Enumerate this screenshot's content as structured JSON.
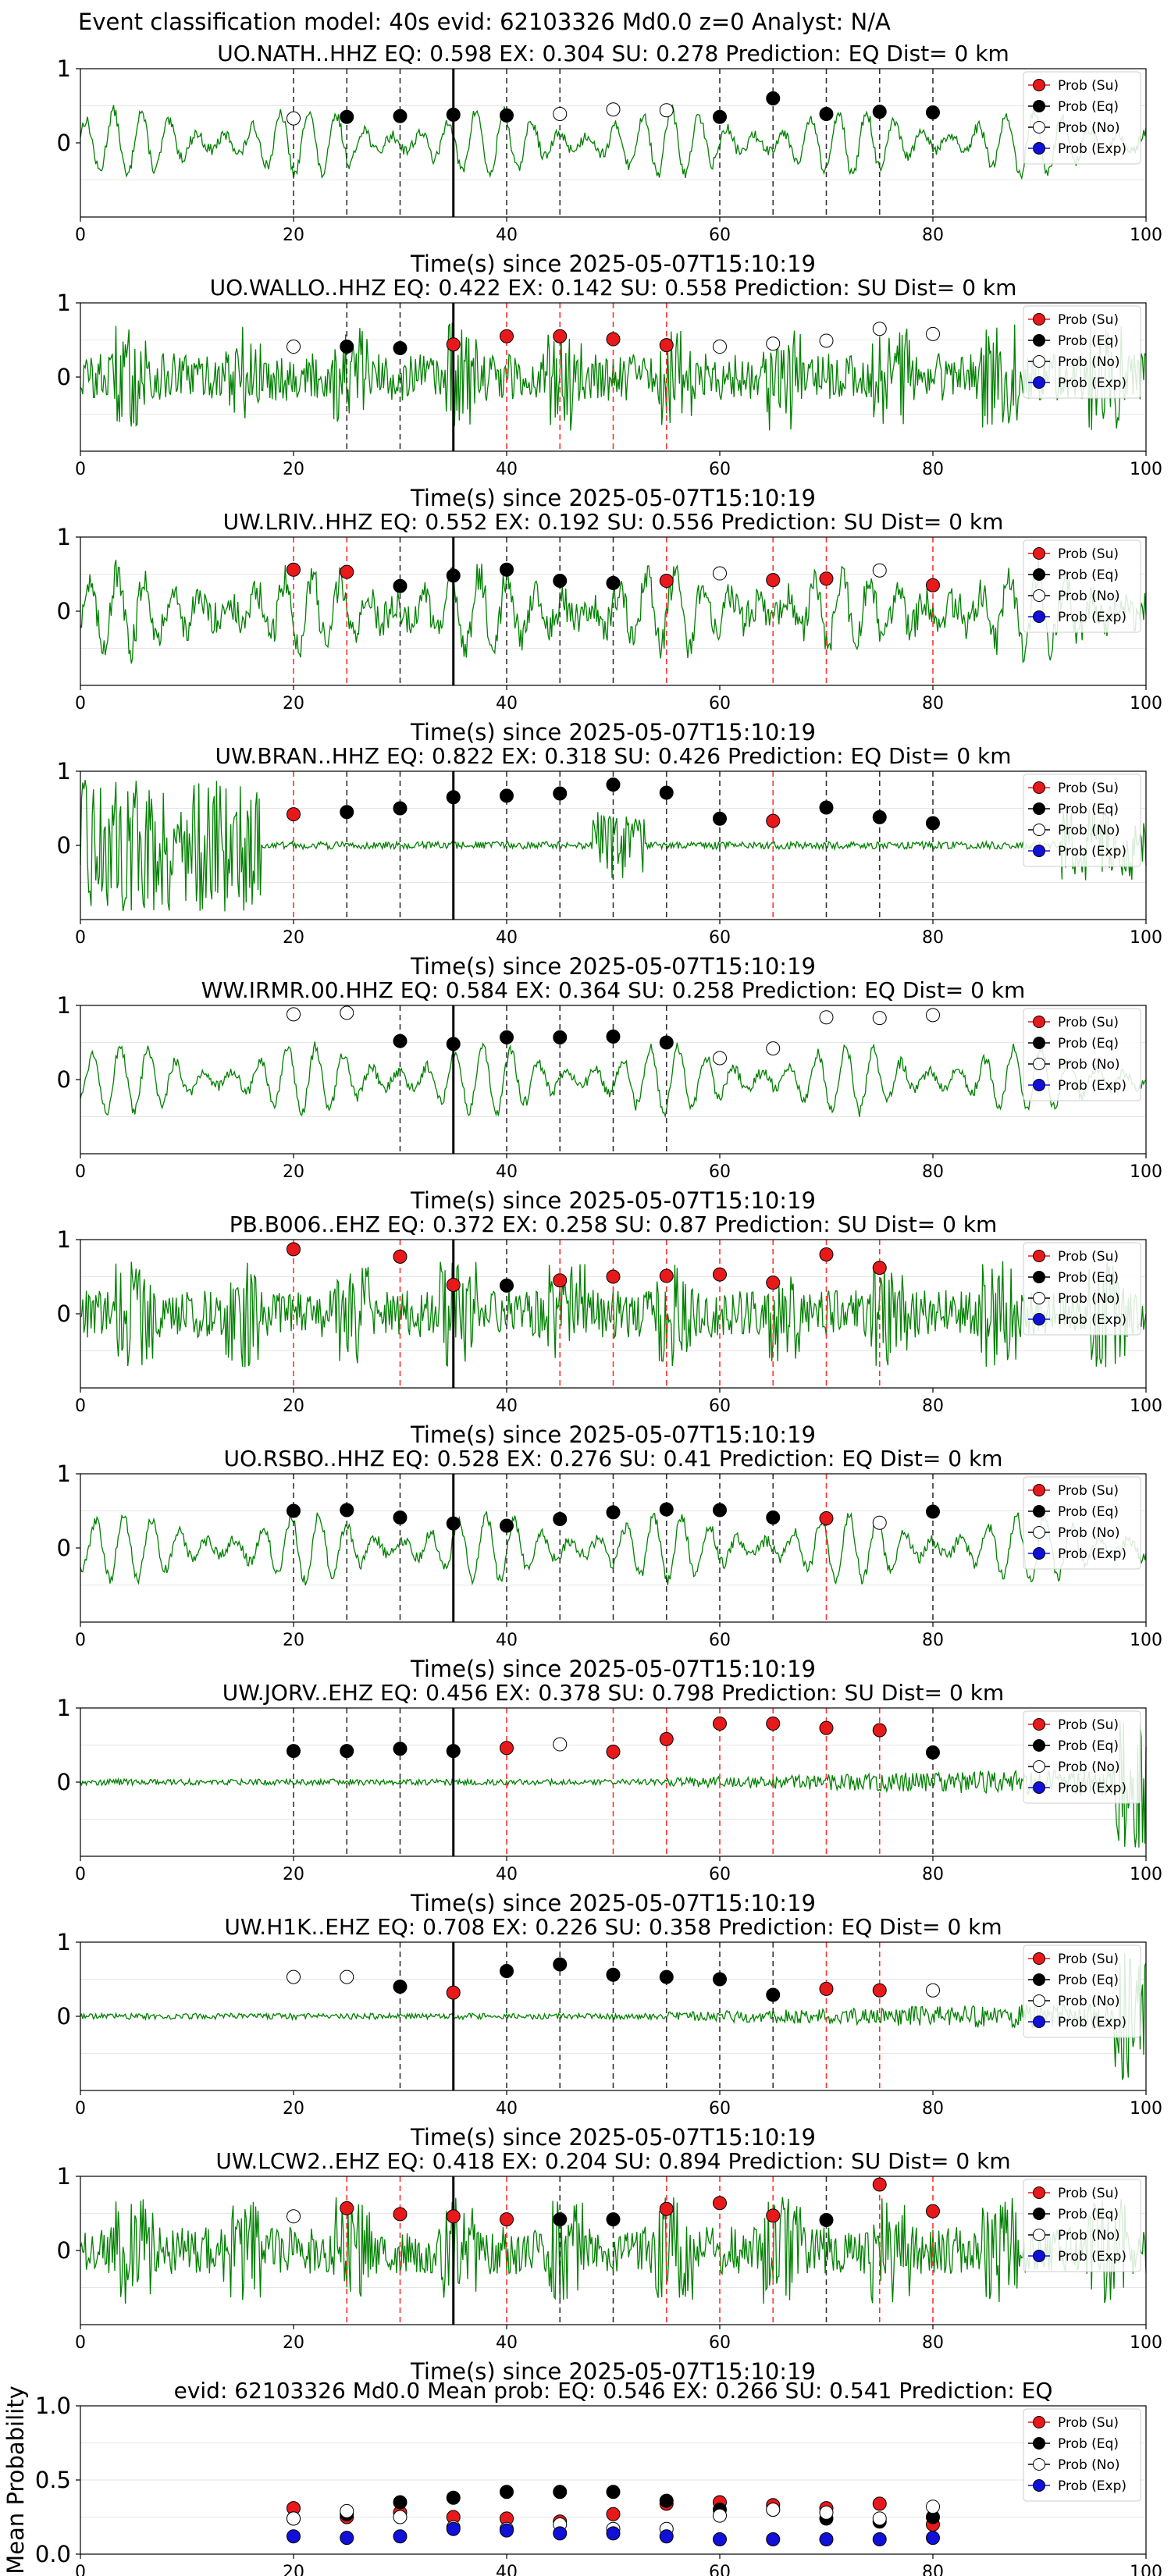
{
  "figure": {
    "title": "Event classification model: 40s evid: 62103326 Md0.0 z=0 Analyst: N/A"
  },
  "colors": {
    "trace": "#008000",
    "su": "#e8191a",
    "eq": "#000000",
    "no": "#ffffff",
    "exp": "#1010d8",
    "dash_su": "#ff3030",
    "dash_eq": "#333333"
  },
  "legend_labels": [
    "Prob (Su)",
    "Prob (Eq)",
    "Prob (No)",
    "Prob (Exp)"
  ],
  "chart_data": [
    {
      "type": "scatter",
      "title": "UO.NATH..HHZ   EQ: 0.598  EX: 0.304  SU: 0.278   Prediction: EQ    Dist= 0 km",
      "xlabel": "Time(s) since 2025-05-07T15:10:19",
      "xlim": [
        0,
        100
      ],
      "ylim": [
        -1,
        1
      ],
      "xticks": [
        0,
        20,
        40,
        60,
        80,
        100
      ],
      "yticks": [
        0,
        1
      ],
      "legend_position": "top-right",
      "waveform_style": "low-frequency",
      "x": [
        20,
        25,
        30,
        35,
        40,
        45,
        50,
        55,
        60,
        65,
        70,
        75,
        80
      ],
      "points": [
        "no:0.33",
        "eq:0.35",
        "eq:0.36",
        "eq:0.38",
        "eq:0.37",
        "no:0.39",
        "no:0.45",
        "no:0.44",
        "eq:0.35",
        "eq:0.60",
        "eq:0.39",
        "eq:0.42",
        "eq:0.41"
      ],
      "dashed_lines": [
        "eq",
        "eq",
        "eq",
        "eq",
        "eq",
        "eq",
        "none",
        "none",
        "eq",
        "eq",
        "eq",
        "eq",
        "eq"
      ]
    },
    {
      "type": "scatter",
      "title": "UO.WALLO..HHZ   EQ: 0.422  EX: 0.142  SU: 0.558   Prediction: SU    Dist= 0 km",
      "xlabel": "Time(s) since 2025-05-07T15:10:19",
      "xlim": [
        0,
        100
      ],
      "ylim": [
        -1,
        1
      ],
      "xticks": [
        0,
        20,
        40,
        60,
        80,
        100
      ],
      "yticks": [
        0,
        1
      ],
      "legend_position": "top-right",
      "waveform_style": "noisy",
      "x": [
        20,
        25,
        30,
        35,
        40,
        45,
        50,
        55,
        60,
        65,
        70,
        75,
        80
      ],
      "points": [
        "no:0.41",
        "eq:0.41",
        "eq:0.39",
        "su:0.44",
        "su:0.55",
        "su:0.55",
        "su:0.51",
        "su:0.43",
        "no:0.41",
        "no:0.45",
        "no:0.49",
        "no:0.65",
        "no:0.58"
      ],
      "dashed_lines": [
        "none",
        "eq",
        "eq",
        "su",
        "su",
        "su",
        "su",
        "su",
        "none",
        "none",
        "none",
        "none",
        "none"
      ]
    },
    {
      "type": "scatter",
      "title": "UW.LRIV..HHZ   EQ: 0.552  EX: 0.192  SU: 0.556   Prediction: SU    Dist= 0 km",
      "xlabel": "Time(s) since 2025-05-07T15:10:19",
      "xlim": [
        0,
        100
      ],
      "ylim": [
        -1,
        1
      ],
      "xticks": [
        0,
        20,
        40,
        60,
        80,
        100
      ],
      "yticks": [
        0,
        1
      ],
      "legend_position": "top-right",
      "waveform_style": "mixed",
      "x": [
        20,
        25,
        30,
        35,
        40,
        45,
        50,
        55,
        60,
        65,
        70,
        75,
        80
      ],
      "points": [
        "su:0.56",
        "su:0.53",
        "eq:0.34",
        "eq:0.48",
        "eq:0.56",
        "eq:0.41",
        "eq:0.38",
        "su:0.41",
        "no:0.51",
        "su:0.42",
        "su:0.44",
        "no:0.55",
        "su:0.35"
      ],
      "dashed_lines": [
        "su",
        "su",
        "eq",
        "eq",
        "eq",
        "eq",
        "eq",
        "su",
        "none",
        "su",
        "su",
        "none",
        "su"
      ]
    },
    {
      "type": "scatter",
      "title": "UW.BRAN..HHZ   EQ: 0.822  EX: 0.318  SU: 0.426   Prediction: EQ    Dist= 0 km",
      "xlabel": "Time(s) since 2025-05-07T15:10:19",
      "xlim": [
        0,
        100
      ],
      "ylim": [
        -1,
        1
      ],
      "xticks": [
        0,
        20,
        40,
        60,
        80,
        100
      ],
      "yticks": [
        0,
        1
      ],
      "legend_position": "top-right",
      "waveform_style": "burst",
      "x": [
        20,
        25,
        30,
        35,
        40,
        45,
        50,
        55,
        60,
        65,
        70,
        75,
        80
      ],
      "points": [
        "su:0.42",
        "eq:0.45",
        "eq:0.50",
        "eq:0.65",
        "eq:0.67",
        "eq:0.70",
        "eq:0.82",
        "eq:0.71",
        "eq:0.36",
        "su:0.33",
        "eq:0.51",
        "eq:0.38",
        "eq:0.30"
      ],
      "dashed_lines": [
        "su",
        "eq",
        "eq",
        "eq",
        "eq",
        "eq",
        "eq",
        "eq",
        "eq",
        "su",
        "eq",
        "eq",
        "eq"
      ]
    },
    {
      "type": "scatter",
      "title": "WW.IRMR.00.HHZ   EQ: 0.584  EX: 0.364  SU: 0.258   Prediction: EQ    Dist= 0 km",
      "xlabel": "Time(s) since 2025-05-07T15:10:19",
      "xlim": [
        0,
        100
      ],
      "ylim": [
        -1,
        1
      ],
      "xticks": [
        0,
        20,
        40,
        60,
        80,
        100
      ],
      "yticks": [
        0,
        1
      ],
      "legend_position": "top-right",
      "waveform_style": "low-frequency",
      "x": [
        20,
        25,
        30,
        35,
        40,
        45,
        50,
        55,
        60,
        65,
        70,
        75,
        80
      ],
      "points": [
        "no:0.88",
        "no:0.90",
        "eq:0.52",
        "eq:0.48",
        "eq:0.57",
        "eq:0.57",
        "eq:0.58",
        "eq:0.50",
        "no:0.29",
        "no:0.42",
        "no:0.84",
        "no:0.83",
        "no:0.87"
      ],
      "dashed_lines": [
        "none",
        "none",
        "eq",
        "eq",
        "eq",
        "eq",
        "eq",
        "eq",
        "none",
        "none",
        "none",
        "none",
        "none"
      ]
    },
    {
      "type": "scatter",
      "title": "PB.B006..EHZ   EQ: 0.372  EX: 0.258  SU: 0.87   Prediction: SU    Dist= 0 km",
      "xlabel": "Time(s) since 2025-05-07T15:10:19",
      "xlim": [
        0,
        100
      ],
      "ylim": [
        -1,
        1
      ],
      "xticks": [
        0,
        20,
        40,
        60,
        80,
        100
      ],
      "yticks": [
        0,
        1
      ],
      "legend_position": "top-right",
      "waveform_style": "noisy",
      "x": [
        20,
        30,
        35,
        40,
        45,
        50,
        55,
        60,
        65,
        70,
        75
      ],
      "points": [
        "su:0.87",
        "su:0.77",
        "su:0.39",
        "eq:0.38",
        "su:0.45",
        "su:0.50",
        "su:0.51",
        "su:0.53",
        "su:0.42",
        "su:0.80",
        "su:0.62"
      ],
      "dashed_lines": [
        "su",
        "su",
        "eq",
        "eq",
        "su",
        "su",
        "su",
        "su",
        "su",
        "su",
        "su"
      ]
    },
    {
      "type": "scatter",
      "title": "UO.RSBO..HHZ   EQ: 0.528  EX: 0.276  SU: 0.41   Prediction: EQ    Dist= 0 km",
      "xlabel": "Time(s) since 2025-05-07T15:10:19",
      "xlim": [
        0,
        100
      ],
      "ylim": [
        -1,
        1
      ],
      "xticks": [
        0,
        20,
        40,
        60,
        80,
        100
      ],
      "yticks": [
        0,
        1
      ],
      "legend_position": "top-right",
      "waveform_style": "low-frequency",
      "x": [
        20,
        25,
        30,
        35,
        40,
        45,
        50,
        55,
        60,
        65,
        70,
        75,
        80
      ],
      "points": [
        "eq:0.50",
        "eq:0.51",
        "eq:0.41",
        "eq:0.33",
        "eq:0.30",
        "eq:0.39",
        "eq:0.48",
        "eq:0.52",
        "eq:0.51",
        "eq:0.41",
        "su:0.40",
        "no:0.34",
        "eq:0.49"
      ],
      "dashed_lines": [
        "eq",
        "eq",
        "eq",
        "eq",
        "eq",
        "eq",
        "eq",
        "eq",
        "eq",
        "eq",
        "su",
        "none",
        "eq"
      ]
    },
    {
      "type": "scatter",
      "title": "UW.JORV..EHZ   EQ: 0.456  EX: 0.378  SU: 0.798   Prediction: SU    Dist= 0 km",
      "xlabel": "Time(s) since 2025-05-07T15:10:19",
      "xlim": [
        0,
        100
      ],
      "ylim": [
        -1,
        1
      ],
      "xticks": [
        0,
        20,
        40,
        60,
        80,
        100
      ],
      "yticks": [
        0,
        1
      ],
      "legend_position": "top-right",
      "waveform_style": "quiet",
      "x": [
        20,
        25,
        30,
        35,
        40,
        45,
        50,
        55,
        60,
        65,
        70,
        75,
        80
      ],
      "points": [
        "eq:0.42",
        "eq:0.42",
        "eq:0.45",
        "eq:0.42",
        "su:0.46",
        "no:0.51",
        "su:0.41",
        "su:0.58",
        "su:0.79",
        "su:0.79",
        "su:0.73",
        "su:0.70",
        "eq:0.40"
      ],
      "dashed_lines": [
        "eq",
        "eq",
        "eq",
        "eq",
        "su",
        "none",
        "su",
        "su",
        "su",
        "su",
        "su",
        "su",
        "eq"
      ]
    },
    {
      "type": "scatter",
      "title": "UW.H1K..EHZ   EQ: 0.708  EX: 0.226  SU: 0.358   Prediction: EQ    Dist= 0 km",
      "xlabel": "Time(s) since 2025-05-07T15:10:19",
      "xlim": [
        0,
        100
      ],
      "ylim": [
        -1,
        1
      ],
      "xticks": [
        0,
        20,
        40,
        60,
        80,
        100
      ],
      "yticks": [
        0,
        1
      ],
      "legend_position": "top-right",
      "waveform_style": "quiet",
      "x": [
        20,
        25,
        30,
        35,
        40,
        45,
        50,
        55,
        60,
        65,
        70,
        75,
        80
      ],
      "points": [
        "no:0.53",
        "no:0.53",
        "eq:0.40",
        "su:0.32",
        "eq:0.61",
        "eq:0.70",
        "eq:0.56",
        "eq:0.53",
        "eq:0.50",
        "eq:0.29",
        "su:0.37",
        "su:0.35",
        "no:0.35"
      ],
      "dashed_lines": [
        "none",
        "none",
        "eq",
        "su",
        "eq",
        "eq",
        "eq",
        "eq",
        "eq",
        "eq",
        "su",
        "su",
        "none"
      ]
    },
    {
      "type": "scatter",
      "title": "UW.LCW2..EHZ   EQ: 0.418  EX: 0.204  SU: 0.894   Prediction: SU    Dist= 0 km",
      "xlabel": "Time(s) since 2025-05-07T15:10:19",
      "xlim": [
        0,
        100
      ],
      "ylim": [
        -1,
        1
      ],
      "xticks": [
        0,
        20,
        40,
        60,
        80,
        100
      ],
      "yticks": [
        0,
        1
      ],
      "legend_position": "top-right",
      "waveform_style": "noisy",
      "x": [
        20,
        25,
        30,
        35,
        40,
        45,
        50,
        55,
        60,
        65,
        70,
        75,
        80
      ],
      "points": [
        "no:0.46",
        "su:0.57",
        "su:0.49",
        "su:0.46",
        "su:0.42",
        "eq:0.42",
        "eq:0.42",
        "su:0.56",
        "su:0.64",
        "su:0.47",
        "eq:0.41",
        "su:0.89",
        "su:0.53"
      ],
      "dashed_lines": [
        "none",
        "su",
        "su",
        "su",
        "su",
        "eq",
        "eq",
        "su",
        "su",
        "su",
        "eq",
        "su",
        "su"
      ]
    },
    {
      "type": "scatter",
      "title": "evid: 62103326  Md0.0   Mean prob:   EQ: 0.546  EX: 0.266  SU: 0.541   Prediction: EQ",
      "ylabel": "Mean Probability",
      "xlim": [
        0,
        100
      ],
      "ylim": [
        0,
        1
      ],
      "xticks": [
        0,
        20,
        40,
        60,
        80,
        100
      ],
      "yticks": [
        0.0,
        0.5,
        1.0
      ],
      "ytick_labels": [
        "0.0",
        "0.5",
        "1.0"
      ],
      "legend_position": "top-right",
      "x": [
        20,
        25,
        30,
        35,
        40,
        45,
        50,
        55,
        60,
        65,
        70,
        75,
        80
      ],
      "series": [
        {
          "name": "Prob (Su)",
          "values": [
            0.31,
            0.25,
            0.28,
            0.25,
            0.24,
            0.22,
            0.27,
            0.34,
            0.35,
            0.33,
            0.31,
            0.34,
            0.2
          ]
        },
        {
          "name": "Prob (Eq)",
          "values": [
            0.24,
            0.27,
            0.35,
            0.38,
            0.42,
            0.42,
            0.42,
            0.36,
            0.3,
            0.3,
            0.24,
            0.22,
            0.25
          ]
        },
        {
          "name": "Prob (No)",
          "values": [
            0.24,
            0.29,
            0.25,
            0.18,
            0.17,
            0.2,
            0.17,
            0.17,
            0.26,
            0.3,
            0.28,
            0.24,
            0.32
          ]
        },
        {
          "name": "Prob (Exp)",
          "values": [
            0.12,
            0.11,
            0.12,
            0.17,
            0.16,
            0.14,
            0.14,
            0.12,
            0.1,
            0.1,
            0.1,
            0.1,
            0.11
          ]
        }
      ]
    }
  ]
}
